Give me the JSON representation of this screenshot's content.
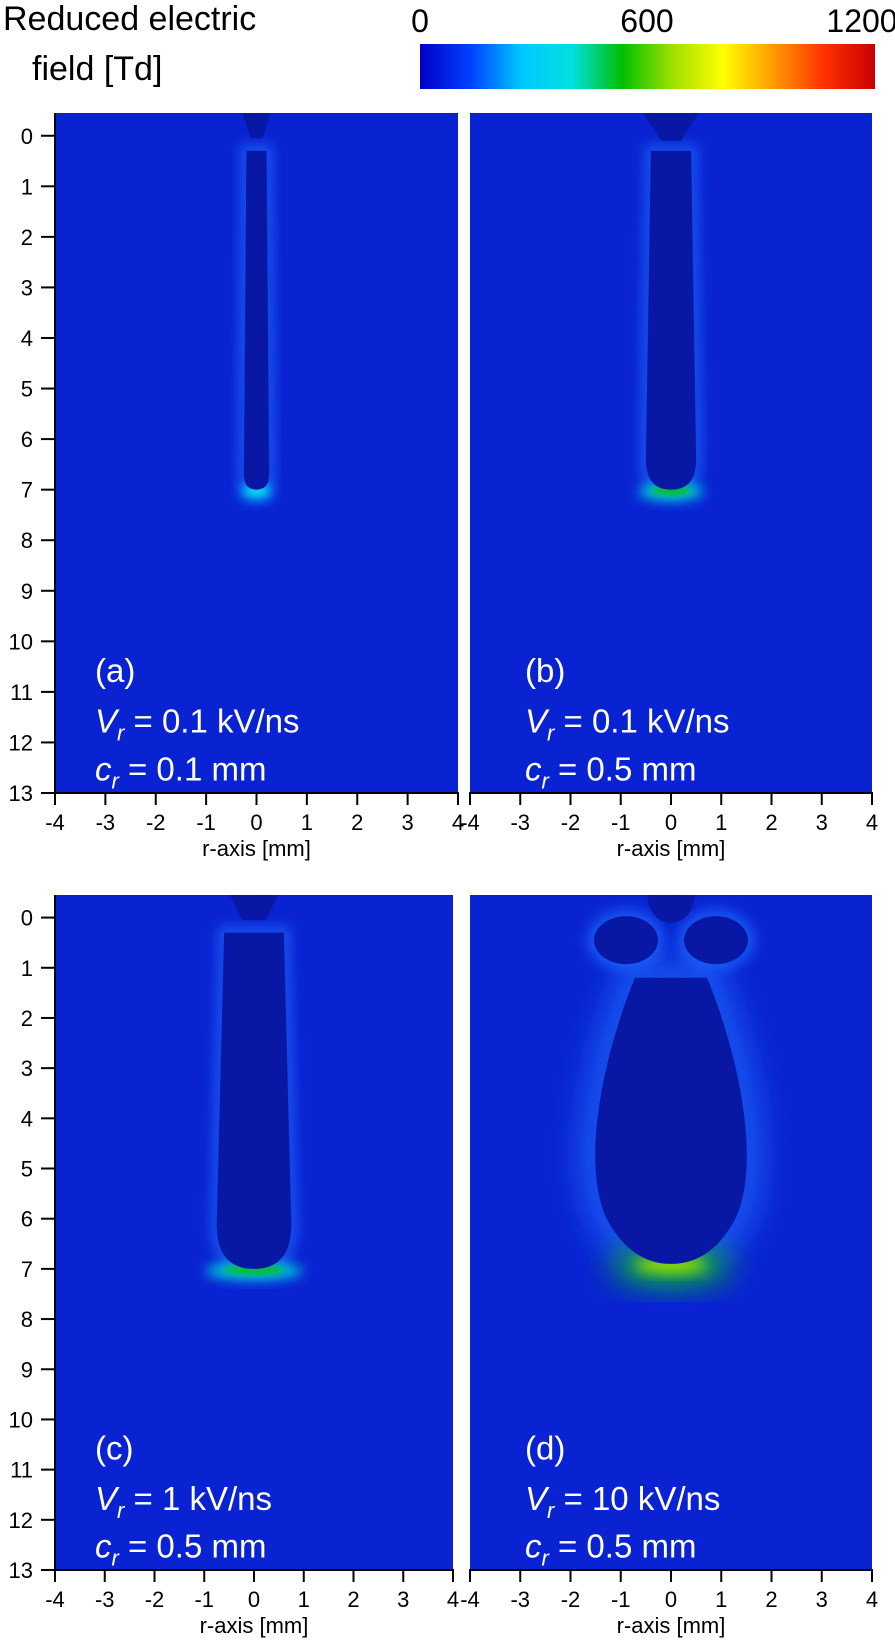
{
  "colorbar": {
    "title_lines": [
      "Reduced electric",
      "field [Td]"
    ],
    "tick_labels": [
      "0",
      "600",
      "1200"
    ],
    "tick_values": [
      0,
      600,
      1200
    ],
    "range": [
      0,
      1200
    ],
    "colormap": [
      "#0000c8",
      "#0040ff",
      "#00c8ff",
      "#00e0e0",
      "#00c000",
      "#a0e000",
      "#ffff00",
      "#ff9a00",
      "#ff3000",
      "#c80000"
    ]
  },
  "chart_data": [
    {
      "type": "heatmap",
      "panel_label": "(a)",
      "vr": {
        "symbol": "V",
        "subscript": "r",
        "value": " = 0.1 kV/ns"
      },
      "cr": {
        "symbol": "c",
        "subscript": "r",
        "value": " = 0.1 mm"
      },
      "xlabel": "r-axis [mm]",
      "xlim": [
        -4,
        4
      ],
      "ylim": [
        0,
        13
      ],
      "x_ticks": [
        -4,
        -3,
        -2,
        -1,
        0,
        1,
        2,
        3,
        4
      ],
      "y_ticks": [
        0,
        1,
        2,
        3,
        4,
        5,
        6,
        7,
        8,
        9,
        10,
        11,
        12,
        13
      ],
      "channel_tip_z_mm": 7.0,
      "channel_half_width_mm": 0.25,
      "tip_peak_field_td": 560,
      "background_color": "#0a23d2",
      "channel_color": "#0818a4"
    },
    {
      "type": "heatmap",
      "panel_label": "(b)",
      "vr": {
        "symbol": "V",
        "subscript": "r",
        "value": " = 0.1 kV/ns"
      },
      "cr": {
        "symbol": "c",
        "subscript": "r",
        "value": " = 0.5 mm"
      },
      "xlabel": "r-axis [mm]",
      "xlim": [
        -4,
        4
      ],
      "ylim": [
        0,
        13
      ],
      "x_ticks": [
        -4,
        -3,
        -2,
        -1,
        0,
        1,
        2,
        3,
        4
      ],
      "y_ticks": [
        0,
        1,
        2,
        3,
        4,
        5,
        6,
        7,
        8,
        9,
        10,
        11,
        12,
        13
      ],
      "channel_tip_z_mm": 7.0,
      "channel_half_width_mm": 0.5,
      "tip_peak_field_td": 650,
      "background_color": "#0a23d2",
      "channel_color": "#0818a4"
    },
    {
      "type": "heatmap",
      "panel_label": "(c)",
      "vr": {
        "symbol": "V",
        "subscript": "r",
        "value": " = 1 kV/ns"
      },
      "cr": {
        "symbol": "c",
        "subscript": "r",
        "value": " = 0.5 mm"
      },
      "xlabel": "r-axis [mm]",
      "xlim": [
        -4,
        4
      ],
      "ylim": [
        0,
        13
      ],
      "x_ticks": [
        -4,
        -3,
        -2,
        -1,
        0,
        1,
        2,
        3,
        4
      ],
      "y_ticks": [
        0,
        1,
        2,
        3,
        4,
        5,
        6,
        7,
        8,
        9,
        10,
        11,
        12,
        13
      ],
      "channel_tip_z_mm": 7.0,
      "channel_half_width_mm": 0.75,
      "tip_peak_field_td": 700,
      "background_color": "#0a23d2",
      "channel_color": "#0818a4"
    },
    {
      "type": "heatmap",
      "panel_label": "(d)",
      "vr": {
        "symbol": "V",
        "subscript": "r",
        "value": " = 10 kV/ns"
      },
      "cr": {
        "symbol": "c",
        "subscript": "r",
        "value": " = 0.5 mm"
      },
      "xlabel": "r-axis [mm]",
      "xlim": [
        -4,
        4
      ],
      "ylim": [
        0,
        13
      ],
      "x_ticks": [
        -4,
        -3,
        -2,
        -1,
        0,
        1,
        2,
        3,
        4
      ],
      "y_ticks": [
        0,
        1,
        2,
        3,
        4,
        5,
        6,
        7,
        8,
        9,
        10,
        11,
        12,
        13
      ],
      "channel_tip_z_mm": 6.9,
      "channel_half_width_mm": 1.6,
      "tip_peak_field_td": 900,
      "background_color": "#0a23d2",
      "channel_color": "#0818a4"
    }
  ]
}
